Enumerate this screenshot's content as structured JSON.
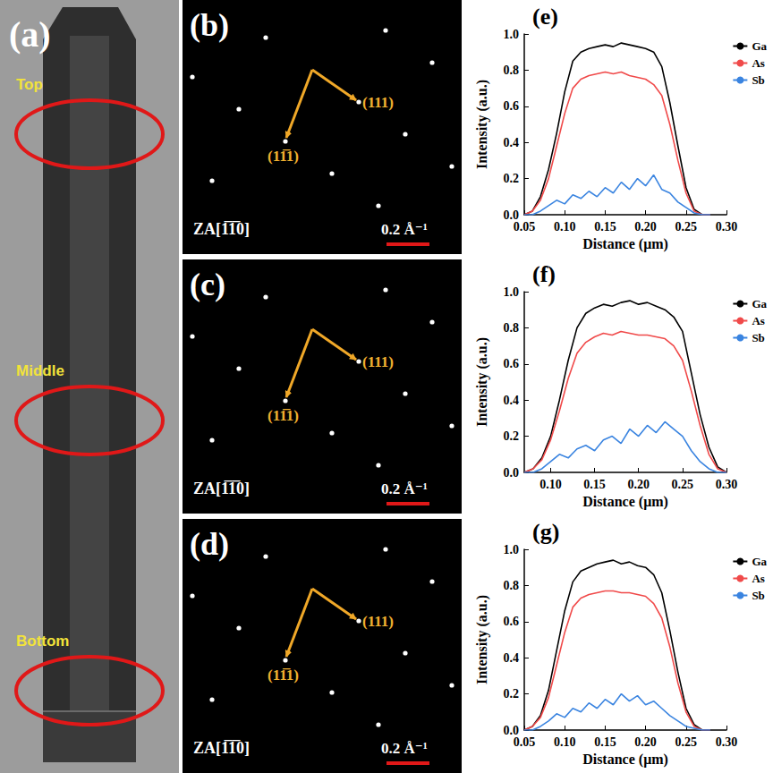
{
  "image_panel": {
    "letter": "(a)",
    "regions": [
      "Top",
      "Middle",
      "Bottom"
    ]
  },
  "diffraction_panels": [
    {
      "letter": "(b)",
      "spot_a": "(111)",
      "spot_b": "(11̅1)",
      "zone_axis": "ZA[1̅1̅0]",
      "scale_bar": "0.2 Å⁻¹"
    },
    {
      "letter": "(c)",
      "spot_a": "(111)",
      "spot_b": "(11̅1)",
      "zone_axis": "ZA[1̅1̅0]",
      "scale_bar": "0.2 Å⁻¹"
    },
    {
      "letter": "(d)",
      "spot_a": "(111)",
      "spot_b": "(11̅1)",
      "zone_axis": "ZA[1̅1̅0]",
      "scale_bar": "0.2 Å⁻¹"
    }
  ],
  "chart_data": [
    {
      "type": "line",
      "title": "(e)",
      "x_label": "Distance (μm)",
      "y_label": "Intensity (a.u.)",
      "x": [
        0.05,
        0.06,
        0.07,
        0.08,
        0.09,
        0.1,
        0.11,
        0.12,
        0.13,
        0.14,
        0.15,
        0.16,
        0.17,
        0.18,
        0.19,
        0.2,
        0.21,
        0.22,
        0.23,
        0.24,
        0.25,
        0.26,
        0.27,
        0.28
      ],
      "series": [
        {
          "name": "Ga",
          "color": "#000000",
          "values": [
            0.0,
            0.02,
            0.1,
            0.25,
            0.45,
            0.68,
            0.85,
            0.9,
            0.92,
            0.93,
            0.94,
            0.93,
            0.95,
            0.94,
            0.93,
            0.92,
            0.9,
            0.82,
            0.62,
            0.38,
            0.15,
            0.03,
            0.0,
            0.0
          ]
        },
        {
          "name": "As",
          "color": "#f04a4a",
          "values": [
            0.0,
            0.02,
            0.08,
            0.2,
            0.38,
            0.56,
            0.7,
            0.75,
            0.77,
            0.78,
            0.79,
            0.78,
            0.79,
            0.77,
            0.76,
            0.75,
            0.72,
            0.66,
            0.5,
            0.3,
            0.12,
            0.02,
            0.0,
            0.0
          ]
        },
        {
          "name": "Sb",
          "color": "#3a84e0",
          "values": [
            0.0,
            0.0,
            0.02,
            0.05,
            0.08,
            0.06,
            0.11,
            0.09,
            0.13,
            0.1,
            0.15,
            0.12,
            0.18,
            0.14,
            0.2,
            0.16,
            0.22,
            0.14,
            0.12,
            0.07,
            0.04,
            0.01,
            0.0,
            0.0
          ]
        }
      ],
      "xlim": [
        0.05,
        0.3
      ],
      "xticks": [
        0.05,
        {
          "value": 0.1,
          "label": "0.10"
        },
        0.15,
        {
          "value": 0.2,
          "label": "0.20"
        },
        0.25,
        {
          "value": 0.3,
          "label": "0.30"
        }
      ],
      "ylim": [
        0,
        1
      ],
      "yticks": [
        {
          "value": 0,
          "label": "0.0"
        },
        0.2,
        0.4,
        0.6,
        0.8,
        {
          "value": 1,
          "label": "1.0"
        }
      ],
      "grid": false,
      "legend": "right"
    },
    {
      "type": "line",
      "title": "(f)",
      "x_label": "Distance (μm)",
      "y_label": "Intensity (a.u.)",
      "x": [
        0.07,
        0.08,
        0.09,
        0.1,
        0.11,
        0.12,
        0.13,
        0.14,
        0.15,
        0.16,
        0.17,
        0.18,
        0.19,
        0.2,
        0.21,
        0.22,
        0.23,
        0.24,
        0.25,
        0.26,
        0.27,
        0.28,
        0.29,
        0.3
      ],
      "series": [
        {
          "name": "Ga",
          "color": "#000000",
          "values": [
            0.0,
            0.02,
            0.08,
            0.2,
            0.4,
            0.62,
            0.8,
            0.88,
            0.91,
            0.93,
            0.92,
            0.94,
            0.95,
            0.93,
            0.94,
            0.92,
            0.9,
            0.86,
            0.78,
            0.55,
            0.32,
            0.14,
            0.03,
            0.0
          ]
        },
        {
          "name": "As",
          "color": "#f04a4a",
          "values": [
            0.0,
            0.02,
            0.07,
            0.18,
            0.34,
            0.52,
            0.66,
            0.72,
            0.75,
            0.77,
            0.76,
            0.78,
            0.77,
            0.76,
            0.76,
            0.75,
            0.74,
            0.7,
            0.62,
            0.45,
            0.26,
            0.1,
            0.02,
            0.0
          ]
        },
        {
          "name": "Sb",
          "color": "#3a84e0",
          "values": [
            0.0,
            0.0,
            0.02,
            0.06,
            0.1,
            0.08,
            0.13,
            0.15,
            0.12,
            0.18,
            0.2,
            0.16,
            0.24,
            0.2,
            0.26,
            0.22,
            0.28,
            0.24,
            0.2,
            0.12,
            0.06,
            0.02,
            0.0,
            0.0
          ]
        }
      ],
      "xlim": [
        0.07,
        0.3
      ],
      "xticks": [
        {
          "value": 0.1,
          "label": "0.10"
        },
        0.15,
        {
          "value": 0.2,
          "label": "0.20"
        },
        0.25,
        {
          "value": 0.3,
          "label": "0.30"
        }
      ],
      "ylim": [
        0,
        1
      ],
      "yticks": [
        {
          "value": 0,
          "label": "0.0"
        },
        0.2,
        0.4,
        0.6,
        0.8,
        {
          "value": 1,
          "label": "1.0"
        }
      ],
      "grid": false,
      "legend": "right"
    },
    {
      "type": "line",
      "title": "(g)",
      "x_label": "Distance (μm)",
      "y_label": "Intensity (a.u.)",
      "x": [
        0.05,
        0.06,
        0.07,
        0.08,
        0.09,
        0.1,
        0.11,
        0.12,
        0.13,
        0.14,
        0.15,
        0.16,
        0.17,
        0.18,
        0.19,
        0.2,
        0.21,
        0.22,
        0.23,
        0.24,
        0.25,
        0.26,
        0.27,
        0.28
      ],
      "series": [
        {
          "name": "Ga",
          "color": "#000000",
          "values": [
            0.0,
            0.02,
            0.08,
            0.22,
            0.44,
            0.66,
            0.82,
            0.88,
            0.9,
            0.92,
            0.93,
            0.94,
            0.92,
            0.93,
            0.91,
            0.9,
            0.86,
            0.76,
            0.55,
            0.32,
            0.12,
            0.03,
            0.0,
            0.0
          ]
        },
        {
          "name": "As",
          "color": "#f04a4a",
          "values": [
            0.0,
            0.02,
            0.07,
            0.18,
            0.36,
            0.54,
            0.68,
            0.73,
            0.75,
            0.76,
            0.77,
            0.77,
            0.76,
            0.76,
            0.75,
            0.74,
            0.7,
            0.62,
            0.46,
            0.26,
            0.1,
            0.02,
            0.0,
            0.0
          ]
        },
        {
          "name": "Sb",
          "color": "#3a84e0",
          "values": [
            0.0,
            0.0,
            0.02,
            0.05,
            0.09,
            0.07,
            0.12,
            0.1,
            0.15,
            0.12,
            0.17,
            0.14,
            0.2,
            0.16,
            0.19,
            0.14,
            0.16,
            0.12,
            0.08,
            0.05,
            0.02,
            0.01,
            0.0,
            0.0
          ]
        }
      ],
      "xlim": [
        0.05,
        0.3
      ],
      "xticks": [
        0.05,
        {
          "value": 0.1,
          "label": "0.10"
        },
        0.15,
        {
          "value": 0.2,
          "label": "0.20"
        },
        0.25,
        {
          "value": 0.3,
          "label": "0.30"
        }
      ],
      "ylim": [
        0,
        1
      ],
      "yticks": [
        {
          "value": 0,
          "label": "0.0"
        },
        0.2,
        0.4,
        0.6,
        0.8,
        {
          "value": 1,
          "label": "1.0"
        }
      ],
      "grid": false,
      "legend": "right"
    }
  ]
}
